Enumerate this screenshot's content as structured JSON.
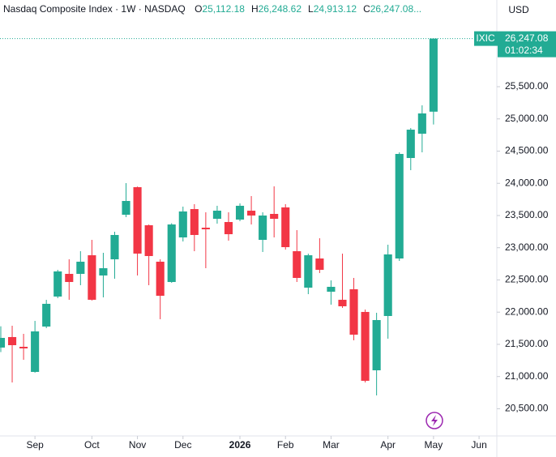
{
  "chart_data": {
    "type": "candlestick",
    "title": "Nasdaq Composite Index · 1W · NASDAQ",
    "ohlc_header": [
      {
        "key": "O",
        "value": 25112.18,
        "label": "25,112.18"
      },
      {
        "key": "H",
        "value": 26248.62,
        "label": "26,248.62"
      },
      {
        "key": "L",
        "value": 24913.12,
        "label": "24,913.12"
      },
      {
        "key": "C",
        "value": 26247.08,
        "label": "26,247.08"
      }
    ],
    "truncation": "...",
    "currency": "USD",
    "symbol": "IXIC",
    "last_price": {
      "value": 26247.08,
      "label": "26,247.08"
    },
    "countdown": "01:02:34",
    "up_color": "#22ab94",
    "down_color": "#f23645",
    "grid": false,
    "categories": [
      null,
      null,
      null,
      null,
      null,
      null,
      null,
      null,
      null,
      null,
      null,
      null,
      null,
      null,
      null,
      null,
      null,
      null,
      null,
      null,
      null,
      null,
      null,
      null,
      null,
      null,
      null,
      null,
      null,
      null,
      null,
      null,
      null,
      null,
      null,
      null,
      null,
      null,
      null
    ],
    "open": [
      21450,
      21613,
      21462,
      21072,
      21776,
      22242,
      22594,
      22594,
      22883,
      22569,
      22820,
      23512,
      23940,
      23349,
      22783,
      22468,
      23160,
      23600,
      23311,
      23449,
      23399,
      23437,
      23575,
      23122,
      23525,
      23626,
      22946,
      22380,
      22833,
      22317,
      22192,
      22355,
      22003,
      21097,
      21940,
      22833,
      24393,
      24770,
      25112.18
    ],
    "high": [
      21780,
      21789,
      21663,
      21864,
      22191,
      22657,
      22820,
      22946,
      23122,
      22921,
      23248,
      24003,
      23950,
      23360,
      22820,
      23380,
      23638,
      23676,
      23550,
      23651,
      23550,
      23688,
      23802,
      23550,
      23953,
      23676,
      23273,
      22908,
      23147,
      22493,
      22908,
      22531,
      22040,
      21990,
      23047,
      24481,
      24858,
      25211,
      26248.62
    ],
    "low": [
      21380,
      20908,
      21260,
      21060,
      21751,
      22217,
      22192,
      22418,
      22180,
      22229,
      22519,
      23475,
      22569,
      22418,
      21890,
      22455,
      23097,
      22946,
      22682,
      23374,
      23110,
      23412,
      23361,
      22934,
      23160,
      22971,
      22468,
      22279,
      22607,
      22116,
      22066,
      21563,
      20908,
      20707,
      21588,
      22795,
      24204,
      24481,
      24913.12
    ],
    "close": [
      21600,
      21487,
      21437,
      21701,
      22129,
      22632,
      22468,
      22783,
      22192,
      22682,
      23198,
      23726,
      22909,
      22871,
      22254,
      23361,
      23563,
      23198,
      23286,
      23575,
      23210,
      23651,
      23500,
      23500,
      23449,
      23009,
      22531,
      22883,
      22657,
      22393,
      22091,
      21650,
      20934,
      21877,
      22896,
      24456,
      24833,
      25085,
      26247.08
    ],
    "xlim": [
      -0.07,
      43.56
    ],
    "xticks": [
      {
        "value": 3,
        "label": "Sep"
      },
      {
        "value": 8,
        "label": "Oct"
      },
      {
        "value": 12,
        "label": "Nov"
      },
      {
        "value": 16,
        "label": "Dec"
      },
      {
        "value": 21,
        "label": "2026"
      },
      {
        "value": 25,
        "label": "Feb"
      },
      {
        "value": 29,
        "label": "Mar"
      },
      {
        "value": 34,
        "label": "Apr"
      },
      {
        "value": 38,
        "label": "May"
      },
      {
        "value": 42,
        "label": "Jun"
      }
    ],
    "ylim": [
      20078,
      26846
    ],
    "yticks": [
      {
        "value": 20500,
        "label": "20,500.00"
      },
      {
        "value": 21000,
        "label": "21,000.00"
      },
      {
        "value": 21500,
        "label": "21,500.00"
      },
      {
        "value": 22000,
        "label": "22,000.00"
      },
      {
        "value": 22500,
        "label": "22,500.00"
      },
      {
        "value": 23000,
        "label": "23,000.00"
      },
      {
        "value": 23500,
        "label": "23,500.00"
      },
      {
        "value": 24000,
        "label": "24,000.00"
      },
      {
        "value": 24500,
        "label": "24,500.00"
      },
      {
        "value": 25000,
        "label": "25,000.00"
      },
      {
        "value": 25500,
        "label": "25,500.00"
      }
    ]
  }
}
